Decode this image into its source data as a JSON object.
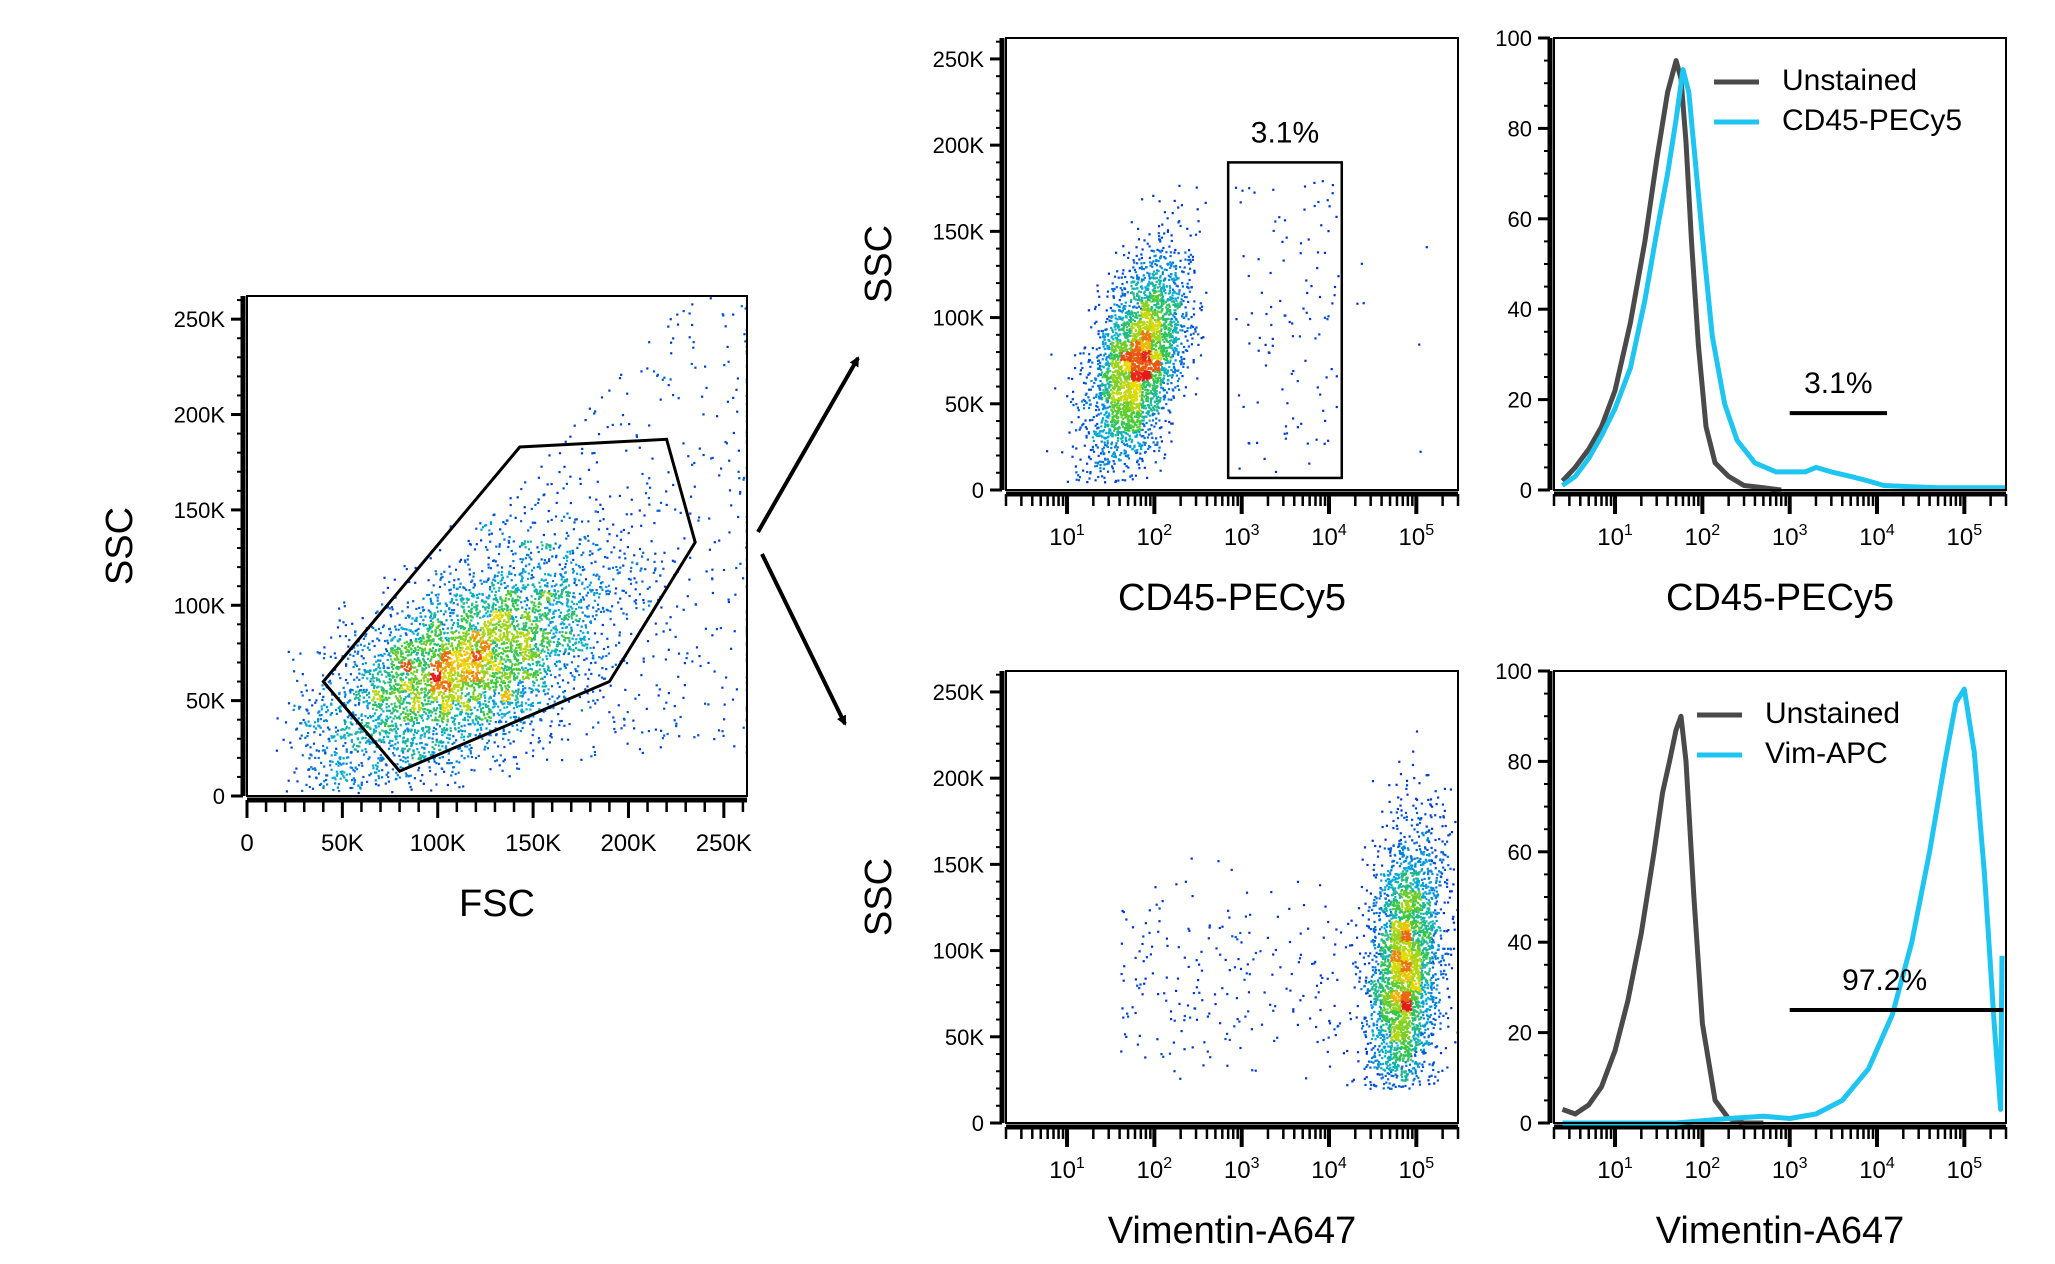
{
  "chart_data": [
    {
      "id": "fsc_ssc",
      "type": "scatter",
      "xlabel": "FSC",
      "ylabel": "SSC",
      "xlim": [
        0,
        262144
      ],
      "ylim": [
        0,
        262144
      ],
      "x_tick_labels": [
        "0",
        "50K",
        "100K",
        "150K",
        "200K",
        "250K"
      ],
      "x_tick_values": [
        0,
        50000,
        100000,
        150000,
        200000,
        250000
      ],
      "y_tick_labels": [
        "0",
        "50K",
        "100K",
        "150K",
        "200K",
        "250K"
      ],
      "y_tick_values": [
        0,
        50000,
        100000,
        150000,
        200000,
        250000
      ],
      "gate": {
        "shape": "polygon",
        "points": [
          [
            40000,
            60000
          ],
          [
            80000,
            13000
          ],
          [
            190000,
            60000
          ],
          [
            235000,
            133000
          ],
          [
            220000,
            187000
          ],
          [
            143000,
            183000
          ]
        ]
      },
      "population": {
        "center": [
          115000,
          70000
        ],
        "spread": [
          38000,
          28000
        ],
        "corr": 0.55
      }
    },
    {
      "id": "cd45_ssc",
      "type": "scatter",
      "xlabel": "CD45-PECy5",
      "ylabel": "SSC",
      "xscale": "log",
      "xlim": [
        2,
        300000
      ],
      "ylim": [
        0,
        262144
      ],
      "x_tick_labels": [
        "10^1",
        "10^2",
        "10^3",
        "10^4",
        "10^5"
      ],
      "x_tick_values": [
        10,
        100,
        1000,
        10000,
        100000
      ],
      "y_tick_labels": [
        "0",
        "50K",
        "100K",
        "150K",
        "200K",
        "250K"
      ],
      "y_tick_values": [
        0,
        50000,
        100000,
        150000,
        200000,
        250000
      ],
      "gate": {
        "shape": "rect",
        "x": [
          700,
          14000
        ],
        "y": [
          7000,
          190000
        ],
        "label": "3.1%"
      },
      "population": {
        "center_log10x": 1.8,
        "center_y": 75000,
        "percent_gated": 3.1
      }
    },
    {
      "id": "cd45_hist",
      "type": "line",
      "xlabel": "CD45-PECy5",
      "xscale": "log",
      "xlim": [
        2,
        300000
      ],
      "ylim": [
        0,
        100
      ],
      "x_tick_labels": [
        "10^1",
        "10^2",
        "10^3",
        "10^4",
        "10^5"
      ],
      "x_tick_values": [
        10,
        100,
        1000,
        10000,
        100000
      ],
      "y_tick_labels": [
        "0",
        "20",
        "40",
        "60",
        "80",
        "100"
      ],
      "y_tick_values": [
        0,
        20,
        40,
        60,
        80,
        100
      ],
      "legend": "top-right",
      "gate": {
        "x": [
          1000,
          13000
        ],
        "y": 17,
        "label": "3.1%"
      },
      "series": [
        {
          "name": "Unstained",
          "color": "#4a4a4a",
          "x": [
            2.5,
            3.5,
            5,
            7,
            10,
            15,
            22,
            30,
            40,
            50,
            57,
            65,
            75,
            90,
            110,
            140,
            200,
            300,
            500,
            800
          ],
          "y": [
            2,
            5,
            9,
            14,
            22,
            37,
            55,
            73,
            88,
            95,
            91,
            77,
            55,
            32,
            14,
            6,
            3,
            1,
            0.5,
            0
          ]
        },
        {
          "name": "CD45-PECy5",
          "color": "#1ec5f0",
          "x": [
            2.5,
            3.5,
            5,
            7,
            10,
            15,
            22,
            30,
            40,
            50,
            60,
            70,
            80,
            100,
            130,
            180,
            250,
            400,
            700,
            1000,
            1500,
            2000,
            3000,
            5000,
            8000,
            12000,
            20000,
            50000,
            150000,
            300000
          ],
          "y": [
            1,
            3,
            7,
            12,
            18,
            27,
            42,
            57,
            70,
            82,
            93,
            88,
            76,
            56,
            34,
            19,
            11,
            6,
            4,
            4,
            4,
            5,
            4,
            3,
            2,
            1,
            0.8,
            0.5,
            0.5,
            0.5
          ]
        }
      ]
    },
    {
      "id": "vim_ssc",
      "type": "scatter",
      "xlabel": "Vimentin-A647",
      "ylabel": "SSC",
      "xscale": "log",
      "xlim": [
        2,
        300000
      ],
      "ylim": [
        0,
        262144
      ],
      "x_tick_labels": [
        "10^1",
        "10^2",
        "10^3",
        "10^4",
        "10^5"
      ],
      "x_tick_values": [
        10,
        100,
        1000,
        10000,
        100000
      ],
      "y_tick_labels": [
        "0",
        "50K",
        "100K",
        "150K",
        "200K",
        "250K"
      ],
      "y_tick_values": [
        0,
        50000,
        100000,
        150000,
        200000,
        250000
      ],
      "population": {
        "center_log10x": 4.85,
        "center_y": 90000
      }
    },
    {
      "id": "vim_hist",
      "type": "line",
      "xlabel": "Vimentin-A647",
      "xscale": "log",
      "xlim": [
        2,
        300000
      ],
      "ylim": [
        0,
        100
      ],
      "x_tick_labels": [
        "10^1",
        "10^2",
        "10^3",
        "10^4",
        "10^5"
      ],
      "x_tick_values": [
        10,
        100,
        1000,
        10000,
        100000
      ],
      "y_tick_labels": [
        "0",
        "20",
        "40",
        "60",
        "80",
        "100"
      ],
      "y_tick_values": [
        0,
        20,
        40,
        60,
        80,
        100
      ],
      "legend": "top-right",
      "gate": {
        "x": [
          1000,
          280000
        ],
        "y": 25,
        "label": "97.2%"
      },
      "series": [
        {
          "name": "Unstained",
          "color": "#4a4a4a",
          "x": [
            2.5,
            3.5,
            5,
            7,
            10,
            14,
            20,
            28,
            35,
            42,
            50,
            57,
            65,
            80,
            100,
            140,
            200,
            300,
            500
          ],
          "y": [
            3,
            2,
            4,
            8,
            16,
            27,
            42,
            60,
            73,
            80,
            87,
            90,
            80,
            50,
            22,
            5,
            1,
            0,
            0
          ]
        },
        {
          "name": "Vim-APC",
          "color": "#1ec5f0",
          "x": [
            2.5,
            50,
            200,
            500,
            1000,
            2000,
            4000,
            8000,
            15000,
            25000,
            40000,
            60000,
            80000,
            100000,
            130000,
            170000,
            220000,
            260000,
            270000
          ],
          "y": [
            0,
            0,
            1,
            1.5,
            1,
            2,
            5,
            12,
            24,
            40,
            60,
            80,
            93,
            96,
            82,
            55,
            22,
            3,
            37
          ]
        }
      ]
    }
  ]
}
